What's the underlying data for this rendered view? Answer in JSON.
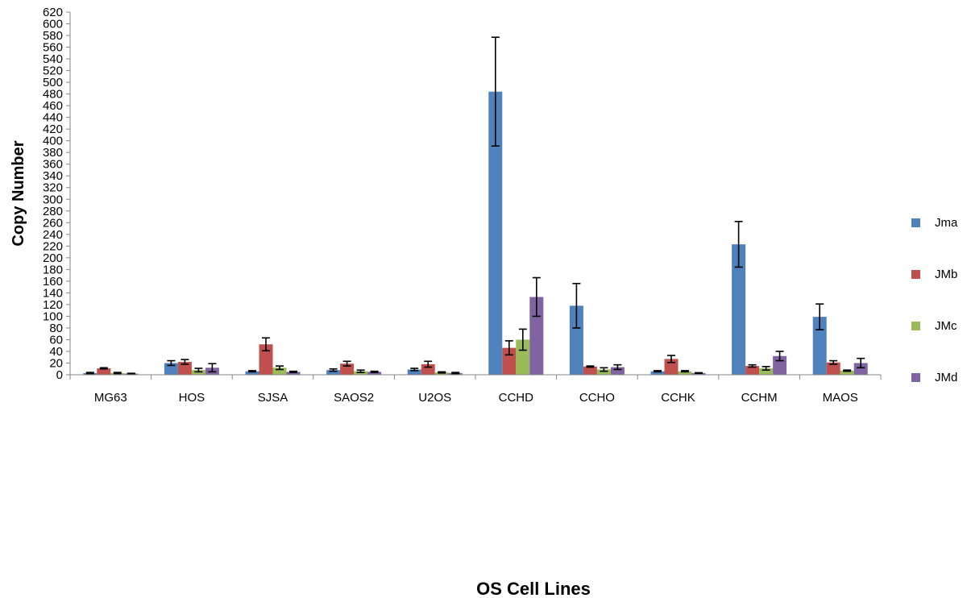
{
  "chart_data": {
    "type": "bar",
    "title": "",
    "xlabel": "OS Cell Lines",
    "ylabel": "Copy Number",
    "ylim": [
      0,
      620
    ],
    "ytick_step": 20,
    "grid": false,
    "legend_position": "right",
    "categories": [
      "MG63",
      "HOS",
      "SJSA",
      "SAOS2",
      "U2OS",
      "CCHD",
      "CCHO",
      "CCHK",
      "CCHM",
      "MAOS"
    ],
    "series": [
      {
        "name": "Jma",
        "color": "#4F81BD",
        "values": [
          3,
          20,
          6,
          8,
          9,
          484,
          118,
          6,
          223,
          99
        ],
        "errors": [
          1,
          4,
          1,
          2,
          2,
          93,
          38,
          1,
          39,
          22
        ]
      },
      {
        "name": "JMb",
        "color": "#C0504D",
        "values": [
          11,
          22,
          52,
          19,
          18,
          46,
          14,
          27,
          15,
          21
        ],
        "errors": [
          1,
          4,
          11,
          4,
          5,
          12,
          1,
          6,
          2,
          3
        ]
      },
      {
        "name": "JMc",
        "color": "#9BBB59",
        "values": [
          3,
          8,
          12,
          6,
          4,
          60,
          9,
          6,
          11,
          7
        ],
        "errors": [
          1,
          3,
          3,
          2,
          1,
          18,
          3,
          1,
          3,
          1
        ]
      },
      {
        "name": "JMd",
        "color": "#8064A2",
        "values": [
          2,
          12,
          5,
          5,
          3,
          133,
          13,
          3,
          32,
          20
        ],
        "errors": [
          0.5,
          7,
          1,
          1,
          1,
          33,
          4,
          0.5,
          8,
          8
        ]
      }
    ]
  }
}
